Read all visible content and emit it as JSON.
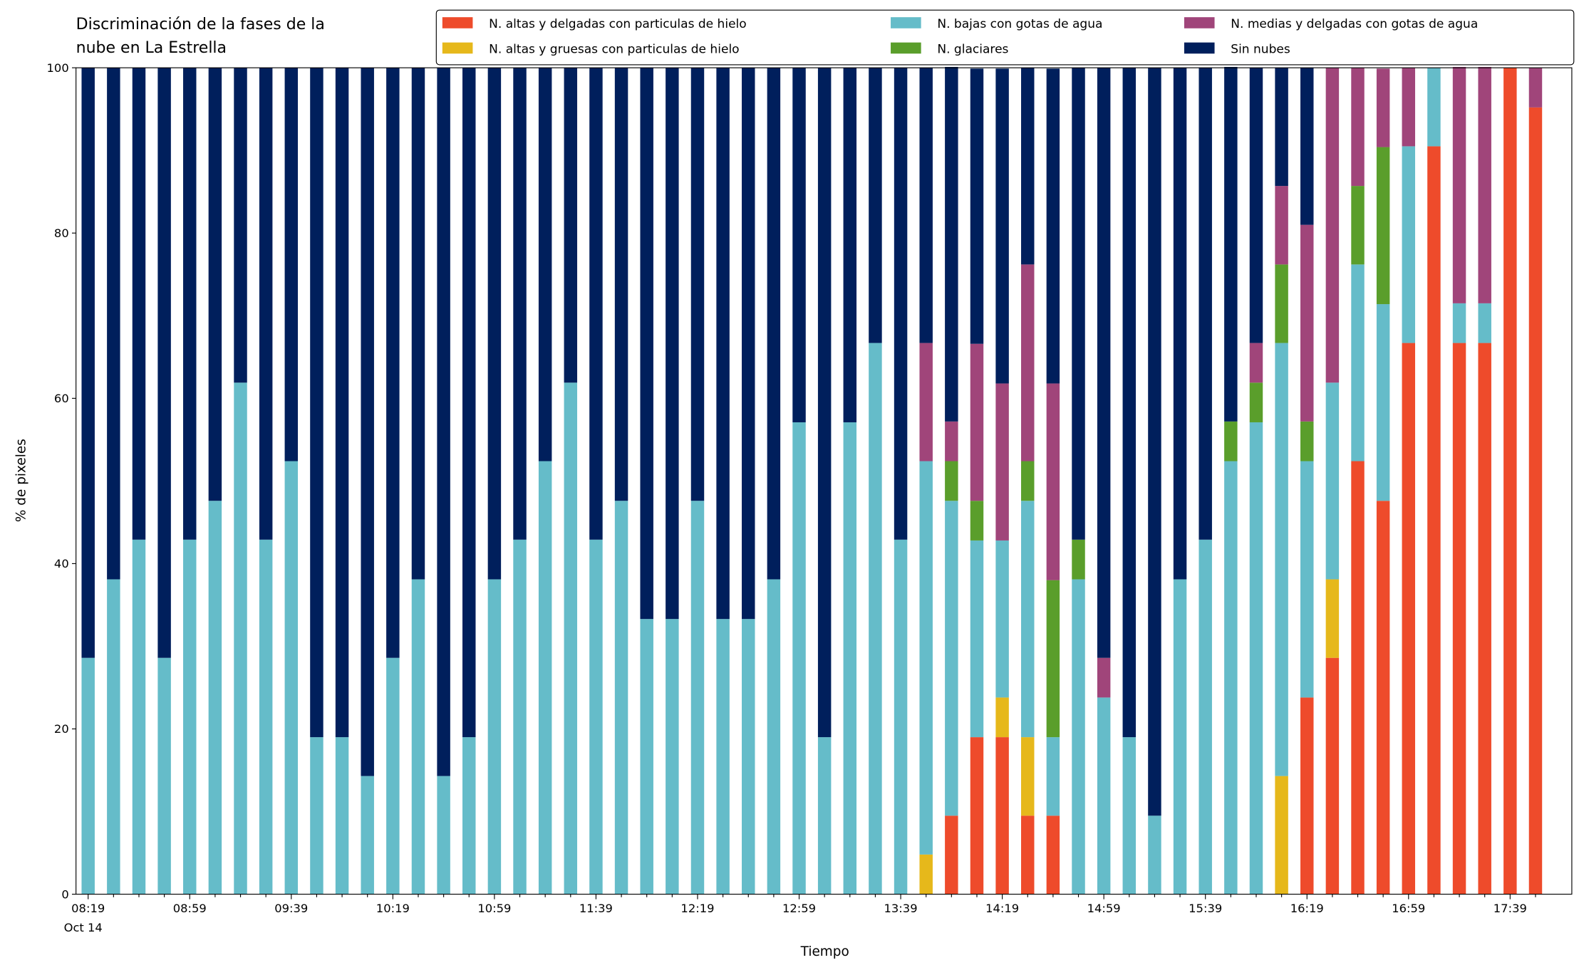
{
  "chart_data": {
    "type": "bar",
    "stacked": true,
    "title": "Discriminación de la fases de la nube en La Estrella",
    "x_label": "Tiempo",
    "y_label": "% de pixeles",
    "date_label": "Oct 14",
    "categories": [
      "08:19",
      null,
      null,
      null,
      "08:59",
      null,
      null,
      null,
      "09:39",
      null,
      null,
      null,
      "10:19",
      null,
      null,
      null,
      "10:59",
      null,
      null,
      null,
      "11:39",
      null,
      null,
      null,
      "12:19",
      null,
      null,
      null,
      "12:59",
      null,
      null,
      null,
      "13:39",
      null,
      null,
      null,
      "14:19",
      null,
      null,
      null,
      "14:59",
      null,
      null,
      null,
      "15:39",
      null,
      null,
      null,
      "16:19",
      null,
      null,
      null,
      "16:59",
      null,
      null,
      null,
      "17:39",
      null
    ],
    "series": [
      {
        "name": "N. altas y delgadas con particulas de hielo",
        "color": "#ee4b2b",
        "values": [
          0,
          0,
          0,
          0,
          0,
          0,
          0,
          0,
          0,
          0,
          0,
          0,
          0,
          0,
          0,
          0,
          0,
          0,
          0,
          0,
          0,
          0,
          0,
          0,
          0,
          0,
          0,
          0,
          0,
          0,
          0,
          0,
          0,
          0,
          9.5,
          19.0,
          19.0,
          9.5,
          9.5,
          0,
          0,
          0,
          0,
          0,
          0,
          0,
          0,
          0,
          23.8,
          28.6,
          52.4,
          47.6,
          66.7,
          90.5,
          66.7,
          66.7,
          100,
          95.2
        ]
      },
      {
        "name": "N. altas y gruesas con particulas de hielo",
        "color": "#e6b81b",
        "values": [
          0,
          0,
          0,
          0,
          0,
          0,
          0,
          0,
          0,
          0,
          0,
          0,
          0,
          0,
          0,
          0,
          0,
          0,
          0,
          0,
          0,
          0,
          0,
          0,
          0,
          0,
          0,
          0,
          0,
          0,
          0,
          0,
          0,
          4.8,
          0,
          0,
          4.8,
          9.5,
          0,
          0,
          0,
          0,
          0,
          0,
          0,
          0,
          0,
          14.3,
          0,
          9.5,
          0,
          0,
          0,
          0,
          0,
          0,
          0,
          0
        ]
      },
      {
        "name": "N. bajas con gotas de agua",
        "color": "#65bcc9",
        "values": [
          28.6,
          38.1,
          42.9,
          28.6,
          42.9,
          47.6,
          61.9,
          42.9,
          52.4,
          19.0,
          19.0,
          14.3,
          28.6,
          38.1,
          14.3,
          19.0,
          38.1,
          42.9,
          52.4,
          61.9,
          42.9,
          47.6,
          33.3,
          33.3,
          47.6,
          33.3,
          33.3,
          38.1,
          57.1,
          19.0,
          57.1,
          66.7,
          42.9,
          47.6,
          38.1,
          23.8,
          19.0,
          28.6,
          9.5,
          38.1,
          23.8,
          19.0,
          9.5,
          38.1,
          42.9,
          52.4,
          57.1,
          52.4,
          28.6,
          23.8,
          23.8,
          23.8,
          23.8,
          9.5,
          4.8,
          4.8,
          0,
          0
        ]
      },
      {
        "name": "N. glaciares",
        "color": "#5a9e2b",
        "values": [
          0,
          0,
          0,
          0,
          0,
          0,
          0,
          0,
          0,
          0,
          0,
          0,
          0,
          0,
          0,
          0,
          0,
          0,
          0,
          0,
          0,
          0,
          0,
          0,
          0,
          0,
          0,
          0,
          0,
          0,
          0,
          0,
          0,
          0,
          4.8,
          4.8,
          0,
          4.8,
          19.0,
          4.8,
          0,
          0,
          0,
          0,
          0,
          4.8,
          4.8,
          9.5,
          4.8,
          0,
          9.5,
          19.0,
          0,
          0,
          0,
          0,
          0,
          0
        ]
      },
      {
        "name": "N. medias y delgadas con gotas de agua",
        "color": "#a0457a",
        "values": [
          0,
          0,
          0,
          0,
          0,
          0,
          0,
          0,
          0,
          0,
          0,
          0,
          0,
          0,
          0,
          0,
          0,
          0,
          0,
          0,
          0,
          0,
          0,
          0,
          0,
          0,
          0,
          0,
          0,
          0,
          0,
          0,
          0,
          14.3,
          4.8,
          19.0,
          19.0,
          23.8,
          23.8,
          0,
          4.8,
          0,
          0,
          0,
          0,
          0,
          4.8,
          9.5,
          23.8,
          38.1,
          14.3,
          9.5,
          9.5,
          0,
          28.6,
          28.6,
          0,
          4.8
        ]
      },
      {
        "name": "Sin nubes",
        "color": "#001f5c",
        "values": [
          71.4,
          61.9,
          57.1,
          71.4,
          57.1,
          52.4,
          38.1,
          57.1,
          47.6,
          81.0,
          81.0,
          85.7,
          71.4,
          61.9,
          85.7,
          81.0,
          61.9,
          57.1,
          47.6,
          38.1,
          57.1,
          52.4,
          66.7,
          66.7,
          52.4,
          66.7,
          66.7,
          61.9,
          42.9,
          81.0,
          42.9,
          33.3,
          57.1,
          33.3,
          42.9,
          33.3,
          38.1,
          23.8,
          38.1,
          57.1,
          71.4,
          81.0,
          90.5,
          61.9,
          57.1,
          42.9,
          33.3,
          14.3,
          19.0,
          0,
          0,
          0,
          0,
          0,
          0,
          0,
          0,
          0
        ]
      }
    ],
    "ylim": [
      0,
      100
    ],
    "yticks": [
      0,
      20,
      40,
      60,
      80,
      100
    ],
    "grid": false,
    "legend": "top"
  }
}
